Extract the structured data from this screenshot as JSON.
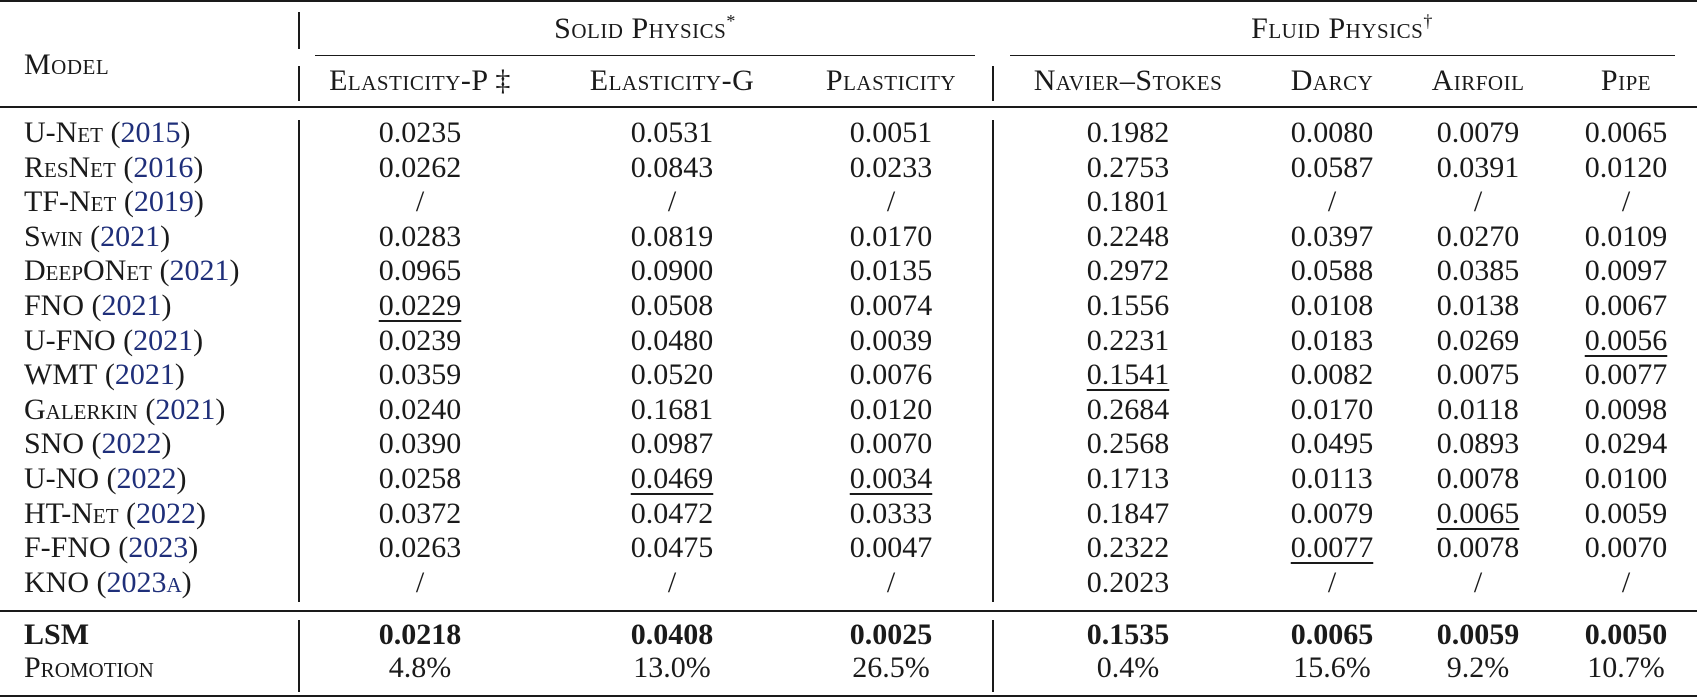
{
  "header": {
    "model_label": "Model",
    "group_solid": "Solid Physics",
    "group_solid_mark": "*",
    "group_fluid": "Fluid Physics",
    "group_fluid_mark": "†",
    "columns": [
      "Elasticity-P ‡",
      "Elasticity-G",
      "Plasticity",
      "Navier–Stokes",
      "Darcy",
      "Airfoil",
      "Pipe"
    ]
  },
  "rows": [
    {
      "name": "U-Net",
      "open": " (",
      "year": "2015",
      "close": ")",
      "values": [
        "0.0235",
        "0.0531",
        "0.0051",
        "0.1982",
        "0.0080",
        "0.0079",
        "0.0065"
      ],
      "underline": [
        false,
        false,
        false,
        false,
        false,
        false,
        false
      ]
    },
    {
      "name": "ResNet",
      "open": " (",
      "year": "2016",
      "close": ")",
      "values": [
        "0.0262",
        "0.0843",
        "0.0233",
        "0.2753",
        "0.0587",
        "0.0391",
        "0.0120"
      ],
      "underline": [
        false,
        false,
        false,
        false,
        false,
        false,
        false
      ]
    },
    {
      "name": "TF-Net",
      "open": " (",
      "year": "2019",
      "close": ")",
      "values": [
        "/",
        "/",
        "/",
        "0.1801",
        "/",
        "/",
        "/"
      ],
      "underline": [
        false,
        false,
        false,
        false,
        false,
        false,
        false
      ]
    },
    {
      "name": "Swin",
      "open": " (",
      "year": "2021",
      "close": ")",
      "values": [
        "0.0283",
        "0.0819",
        "0.0170",
        "0.2248",
        "0.0397",
        "0.0270",
        "0.0109"
      ],
      "underline": [
        false,
        false,
        false,
        false,
        false,
        false,
        false
      ]
    },
    {
      "name": "DeepONet",
      "open": " (",
      "year": "2021",
      "close": ")",
      "values": [
        "0.0965",
        "0.0900",
        "0.0135",
        "0.2972",
        "0.0588",
        "0.0385",
        "0.0097"
      ],
      "underline": [
        false,
        false,
        false,
        false,
        false,
        false,
        false
      ]
    },
    {
      "name": "FNO",
      "open": " (",
      "year": "2021",
      "close": ")",
      "values": [
        "0.0229",
        "0.0508",
        "0.0074",
        "0.1556",
        "0.0108",
        "0.0138",
        "0.0067"
      ],
      "underline": [
        true,
        false,
        false,
        false,
        false,
        false,
        false
      ]
    },
    {
      "name": "U-FNO",
      "open": " (",
      "year": "2021",
      "close": ")",
      "values": [
        "0.0239",
        "0.0480",
        "0.0039",
        "0.2231",
        "0.0183",
        "0.0269",
        "0.0056"
      ],
      "underline": [
        false,
        false,
        false,
        false,
        false,
        false,
        true
      ]
    },
    {
      "name": "WMT",
      "open": " (",
      "year": "2021",
      "close": ")",
      "values": [
        "0.0359",
        "0.0520",
        "0.0076",
        "0.1541",
        "0.0082",
        "0.0075",
        "0.0077"
      ],
      "underline": [
        false,
        false,
        false,
        true,
        false,
        false,
        false
      ]
    },
    {
      "name": "Galerkin",
      "open": " (",
      "year": "2021",
      "close": ")",
      "values": [
        "0.0240",
        "0.1681",
        "0.0120",
        "0.2684",
        "0.0170",
        "0.0118",
        "0.0098"
      ],
      "underline": [
        false,
        false,
        false,
        false,
        false,
        false,
        false
      ]
    },
    {
      "name": "SNO",
      "open": " (",
      "year": "2022",
      "close": ")",
      "values": [
        "0.0390",
        "0.0987",
        "0.0070",
        "0.2568",
        "0.0495",
        "0.0893",
        "0.0294"
      ],
      "underline": [
        false,
        false,
        false,
        false,
        false,
        false,
        false
      ]
    },
    {
      "name": "U-NO",
      "open": " (",
      "year": "2022",
      "close": ")",
      "values": [
        "0.0258",
        "0.0469",
        "0.0034",
        "0.1713",
        "0.0113",
        "0.0078",
        "0.0100"
      ],
      "underline": [
        false,
        true,
        true,
        false,
        false,
        false,
        false
      ]
    },
    {
      "name": "HT-Net",
      "open": " (",
      "year": "2022",
      "close": ")",
      "values": [
        "0.0372",
        "0.0472",
        "0.0333",
        "0.1847",
        "0.0079",
        "0.0065",
        "0.0059"
      ],
      "underline": [
        false,
        false,
        false,
        false,
        false,
        true,
        false
      ]
    },
    {
      "name": "F-FNO",
      "open": " (",
      "year": "2023",
      "close": ")",
      "values": [
        "0.0263",
        "0.0475",
        "0.0047",
        "0.2322",
        "0.0077",
        "0.0078",
        "0.0070"
      ],
      "underline": [
        false,
        false,
        false,
        false,
        true,
        false,
        false
      ]
    },
    {
      "name": "KNO",
      "open": " (",
      "year": "2023a",
      "close": ")",
      "values": [
        "/",
        "/",
        "/",
        "0.2023",
        "/",
        "/",
        "/"
      ],
      "underline": [
        false,
        false,
        false,
        false,
        false,
        false,
        false
      ]
    }
  ],
  "lsm": {
    "name": "LSM",
    "values": [
      "0.0218",
      "0.0408",
      "0.0025",
      "0.1535",
      "0.0065",
      "0.0059",
      "0.0050"
    ]
  },
  "promotion": {
    "name": "Promotion",
    "values": [
      "4.8%",
      "13.0%",
      "26.5%",
      "0.4%",
      "15.6%",
      "9.2%",
      "10.7%"
    ]
  }
}
